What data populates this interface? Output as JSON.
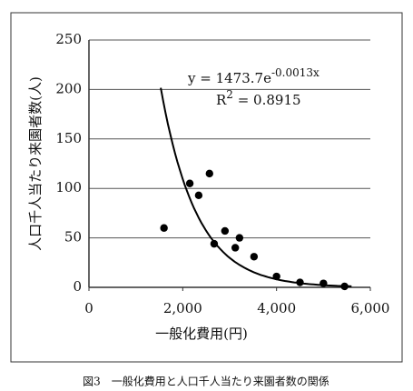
{
  "chart_data": {
    "type": "scatter",
    "x": [
      1600,
      2150,
      2340,
      2570,
      2670,
      2900,
      3120,
      3210,
      3520,
      4000,
      4500,
      5000,
      5450
    ],
    "values": [
      60,
      105,
      93,
      115,
      44,
      57,
      40,
      50,
      31,
      11,
      5,
      4,
      1
    ],
    "color": "#000000",
    "xlim": [
      0,
      6000
    ],
    "ylim": [
      0,
      250
    ],
    "xticks": [
      0,
      {
        "value": 2000,
        "label": "2,000"
      },
      {
        "value": 4000,
        "label": "4,000"
      },
      {
        "value": 6000,
        "label": "6,000"
      }
    ],
    "yticks": [
      0,
      50,
      100,
      150,
      200,
      250
    ],
    "grid": true,
    "x_label": "一般化費用(円)",
    "y_label": "人口千人当たり来園者数(人)",
    "trendline": {
      "a": 1473.7,
      "b": -0.0013,
      "equation": "y = 1473.7e",
      "exponent": "-0.0013x",
      "r_label": "R",
      "r_sup": "2",
      "r_value": " = 0.8915"
    },
    "caption": "図3　一般化費用と人口千人当たり来園者数の関係"
  }
}
